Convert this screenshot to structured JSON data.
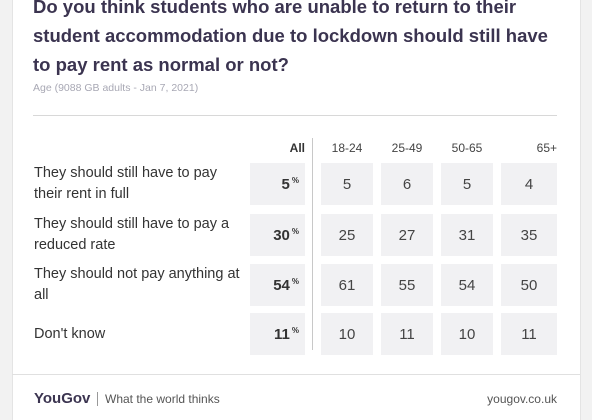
{
  "header": {
    "title": "Do you think students who are unable to return to their student accommodation due to lockdown should still have to pay rent as normal or not?",
    "subtitle": "Age (9088 GB adults - Jan 7, 2021)"
  },
  "table": {
    "columns": [
      "All",
      "18-24",
      "25-49",
      "50-65",
      "65+"
    ],
    "rows": [
      {
        "label": "They should still have to pay their rent in full",
        "all": {
          "value": "5",
          "unit": "%"
        },
        "values": [
          "5",
          "6",
          "5",
          "4"
        ]
      },
      {
        "label": "They should still have to pay a reduced rate",
        "all": {
          "value": "30",
          "unit": "%"
        },
        "values": [
          "25",
          "27",
          "31",
          "35"
        ]
      },
      {
        "label": "They should not pay anything at all",
        "all": {
          "value": "54",
          "unit": "%"
        },
        "values": [
          "61",
          "55",
          "54",
          "50"
        ]
      },
      {
        "label": "Don't know",
        "all": {
          "value": "11",
          "unit": "%"
        },
        "values": [
          "10",
          "11",
          "10",
          "11"
        ]
      }
    ]
  },
  "footer": {
    "logo": "YouGov",
    "tagline": "What the world thinks",
    "url": "yougov.co.uk"
  }
}
